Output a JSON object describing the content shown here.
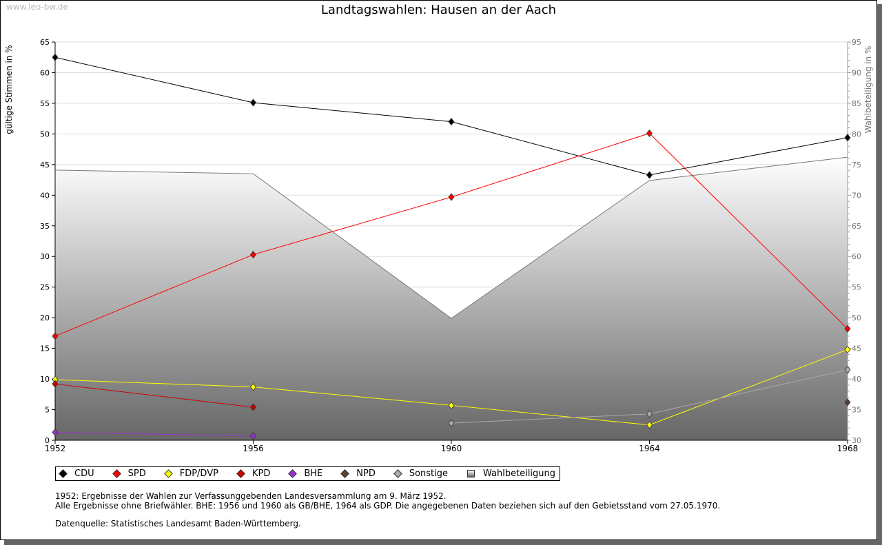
{
  "watermark": "www.leo-bw.de",
  "chart_data": {
    "type": "line",
    "title": "Landtagswahlen: Hausen an der Aach",
    "x": [
      1952,
      1956,
      1960,
      1964,
      1968
    ],
    "ylabel": "gültige Stimmen in %",
    "y2label": "Wahlbeteiligung in %",
    "ylim": [
      0,
      65
    ],
    "y2lim": [
      30,
      95
    ],
    "yticks": [
      0,
      5,
      10,
      15,
      20,
      25,
      30,
      35,
      40,
      45,
      50,
      55,
      60,
      65
    ],
    "y2ticks": [
      30,
      35,
      40,
      45,
      50,
      55,
      60,
      65,
      70,
      75,
      80,
      85,
      90,
      95
    ],
    "grid": true,
    "legend_position": "bottom",
    "series": [
      {
        "name": "CDU",
        "color": "#000000",
        "values": [
          62.5,
          55.1,
          52.0,
          43.3,
          49.4
        ]
      },
      {
        "name": "SPD",
        "color": "#ff0000",
        "values": [
          17.0,
          30.3,
          39.7,
          50.1,
          18.2
        ]
      },
      {
        "name": "FDP/DVP",
        "color": "#ffff00",
        "values": [
          9.9,
          8.7,
          5.7,
          2.5,
          14.8
        ]
      },
      {
        "name": "KPD",
        "color": "#cc0000",
        "values": [
          9.2,
          5.4,
          null,
          null,
          null
        ]
      },
      {
        "name": "BHE",
        "color": "#9933cc",
        "values": [
          1.3,
          0.7,
          null,
          null,
          null
        ]
      },
      {
        "name": "NPD",
        "color": "#5a4030",
        "values": [
          null,
          null,
          null,
          null,
          6.2
        ]
      },
      {
        "name": "Sonstige",
        "color": "#aaaaaa",
        "values": [
          null,
          null,
          2.8,
          4.3,
          11.5
        ]
      }
    ],
    "turnout": {
      "name": "Wahlbeteiligung",
      "axis": "right",
      "values": [
        74.1,
        73.5,
        49.9,
        72.4,
        76.2
      ]
    }
  },
  "notes": [
    "1952: Ergebnisse der Wahlen zur Verfassunggebenden Landesversammlung am 9. März 1952.",
    "Alle Ergebnisse ohne Briefwähler. BHE: 1956 und 1960 als GB/BHE, 1964 als GDP. Die angegebenen Daten beziehen sich auf den Gebietsstand vom 27.05.1970.",
    "Datenquelle: Statistisches Landesamt Baden-Württemberg."
  ]
}
